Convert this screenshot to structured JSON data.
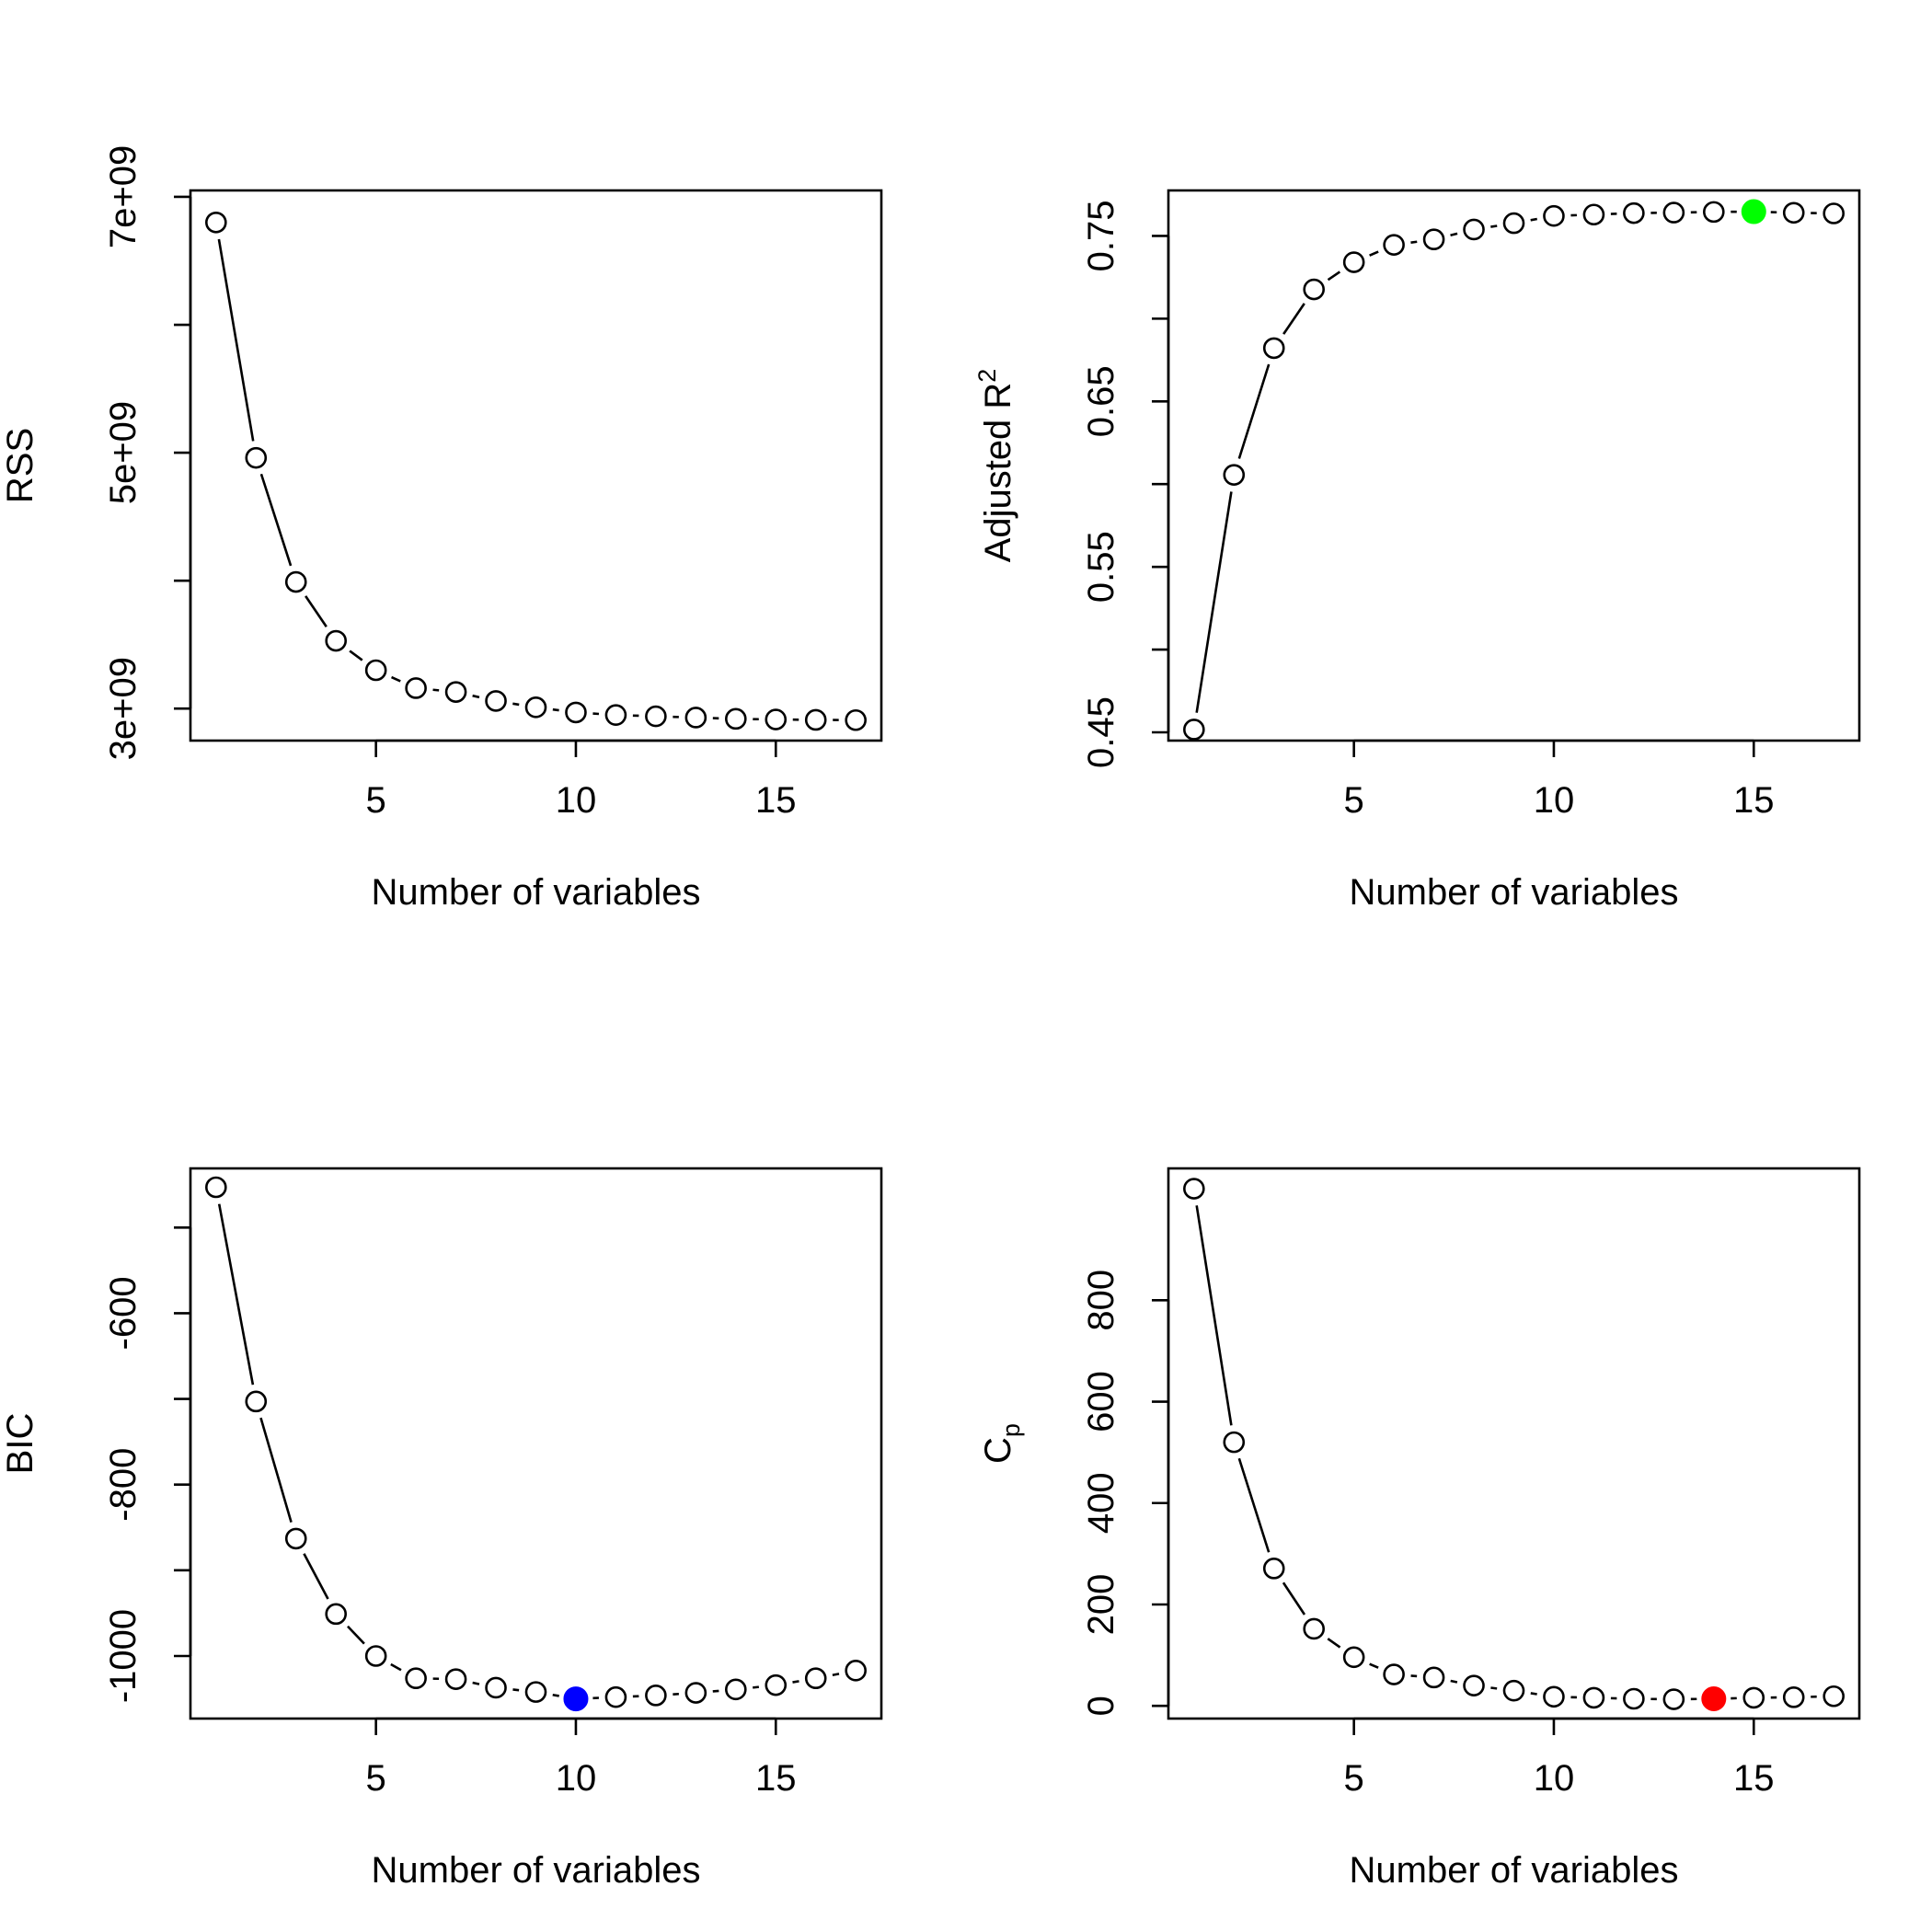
{
  "chart_data": [
    {
      "type": "line",
      "xlabel": "Number of variables",
      "ylabel": "RSS",
      "x": [
        1,
        2,
        3,
        4,
        5,
        6,
        7,
        8,
        9,
        10,
        11,
        12,
        13,
        14,
        15,
        16,
        17
      ],
      "values": [
        6800000000,
        4960000000,
        3990000000,
        3530000000,
        3300000000,
        3160000000,
        3130000000,
        3060000000,
        3010000000,
        2970000000,
        2950000000,
        2940000000,
        2930000000,
        2920000000,
        2915000000,
        2912000000,
        2910000000
      ],
      "xlim": [
        0.36,
        17.64
      ],
      "ylim": [
        2750000000,
        7050000000
      ],
      "xticks": [
        5,
        10,
        15
      ],
      "xtick_labels": [
        "5",
        "10",
        "15"
      ],
      "yticks": [
        3000000000,
        4000000000,
        5000000000,
        6000000000,
        7000000000
      ],
      "ytick_labels": [
        "3e+09",
        "",
        "5e+09",
        "",
        "7e+09"
      ],
      "highlight": null
    },
    {
      "type": "line",
      "xlabel": "Number of variables",
      "ylabel": "Adjusted R",
      "ylabel_superscript": "2",
      "x": [
        1,
        2,
        3,
        4,
        5,
        6,
        7,
        8,
        9,
        10,
        11,
        12,
        13,
        14,
        15,
        16,
        17
      ],
      "values": [
        0.4517,
        0.6056,
        0.6822,
        0.7177,
        0.7341,
        0.7446,
        0.7479,
        0.7539,
        0.7577,
        0.7621,
        0.7629,
        0.7638,
        0.7641,
        0.7645,
        0.7647,
        0.764,
        0.7636
      ],
      "xlim": [
        0.36,
        17.64
      ],
      "ylim": [
        0.445,
        0.7775
      ],
      "xticks": [
        5,
        10,
        15
      ],
      "xtick_labels": [
        "5",
        "10",
        "15"
      ],
      "yticks": [
        0.45,
        0.5,
        0.55,
        0.6,
        0.65,
        0.7,
        0.75
      ],
      "ytick_labels": [
        "0.45",
        "",
        "0.55",
        "",
        "0.65",
        "",
        "0.75"
      ],
      "highlight": {
        "x": 15,
        "y": 0.7647,
        "color": "#00ff00"
      }
    },
    {
      "type": "line",
      "xlabel": "Number of variables",
      "ylabel": "BIC",
      "x": [
        1,
        2,
        3,
        4,
        5,
        6,
        7,
        8,
        9,
        10,
        11,
        12,
        13,
        14,
        15,
        16,
        17
      ],
      "values": [
        -453,
        -703,
        -863,
        -951,
        -1000,
        -1026,
        -1027,
        -1037,
        -1042,
        -1050,
        -1048,
        -1046,
        -1043,
        -1039,
        -1034,
        -1026,
        -1017
      ],
      "xlim": [
        0.36,
        17.64
      ],
      "ylim": [
        -1073,
        -431
      ],
      "xticks": [
        5,
        10,
        15
      ],
      "xtick_labels": [
        "5",
        "10",
        "15"
      ],
      "yticks": [
        -1000,
        -900,
        -800,
        -700,
        -600,
        -500
      ],
      "ytick_labels": [
        "-1000",
        "",
        "-800",
        "",
        "-600",
        ""
      ],
      "highlight": {
        "x": 10,
        "y": -1050,
        "color": "#0000ff"
      }
    },
    {
      "type": "line",
      "xlabel": "Number of variables",
      "ylabel": "C",
      "ylabel_subscript": "p",
      "x": [
        1,
        2,
        3,
        4,
        5,
        6,
        7,
        8,
        9,
        10,
        11,
        12,
        13,
        14,
        15,
        16,
        17
      ],
      "values": [
        1020,
        520,
        271,
        152,
        96,
        62,
        56,
        40,
        30,
        18,
        16,
        14,
        13,
        14,
        16,
        17,
        19
      ],
      "xlim": [
        0.36,
        17.64
      ],
      "ylim": [
        -25,
        1060
      ],
      "xticks": [
        5,
        10,
        15
      ],
      "xtick_labels": [
        "5",
        "10",
        "15"
      ],
      "yticks": [
        0,
        200,
        400,
        600,
        800
      ],
      "ytick_labels": [
        "0",
        "200",
        "400",
        "600",
        "800"
      ],
      "highlight": {
        "x": 14,
        "y": 14,
        "color": "#ff0000"
      }
    }
  ]
}
